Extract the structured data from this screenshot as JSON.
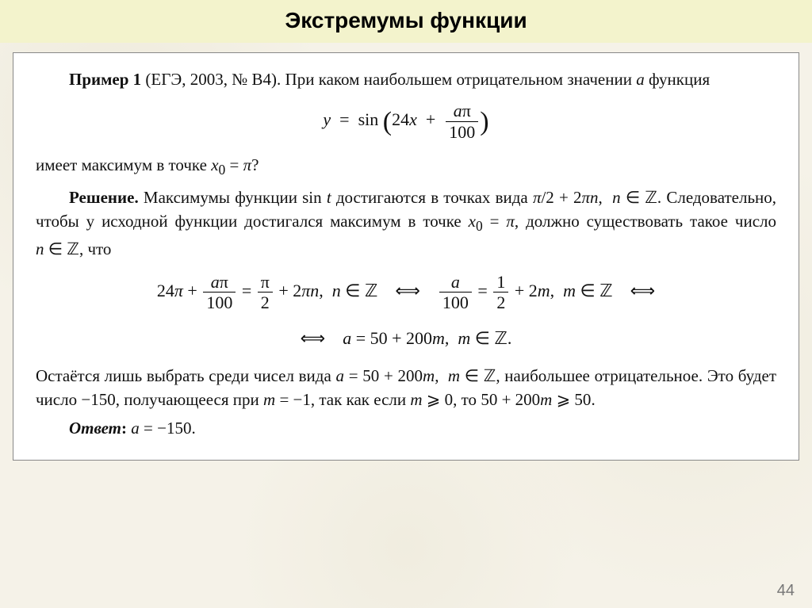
{
  "title": "Экстремумы функции",
  "page_number": "44",
  "colors": {
    "page_bg": "#f5f2e8",
    "title_bg": "#f3f3cc",
    "box_bg": "#ffffff",
    "box_border": "#888888",
    "text": "#111111",
    "pagenum": "#777777"
  },
  "example": {
    "label": "Пример 1",
    "source": "(ЕГЭ, 2003, № В4).",
    "prompt_before": "При каком наибольшем отрицательном значении ",
    "var_a": "a",
    "prompt_after": " функция",
    "formula": {
      "lhs": "y",
      "func": "sin",
      "inner_linear": "24x",
      "frac_num": "aπ",
      "frac_den": "100"
    },
    "condition_before": "имеет максимум в точке ",
    "x0_label": "x",
    "x0_sub": "0",
    "x0_value": "π",
    "condition_q": "?"
  },
  "solution": {
    "label": "Решение.",
    "p1_a": "Максимумы функции ",
    "p1_sint": "sin t",
    "p1_b": " достигаются в точках вида ",
    "p1_form": "π/2 + 2πn",
    "p1_nZ": "n ∈ ℤ",
    "p1_c": ". Следовательно, чтобы у исходной функции достигался максимум в точке ",
    "p1_x0": "x₀ = π",
    "p1_d": ", должно существовать такое число ",
    "p1_nZ2": "n ∈ ℤ",
    "p1_e": ", что",
    "eq_chain": {
      "t1_lhs_24pi": "24π",
      "t1_frac_num": "aπ",
      "t1_frac_den": "100",
      "t1_rhs_pi2_num": "π",
      "t1_rhs_pi2_den": "2",
      "t1_rhs_2pin": "2πn",
      "t1_nZ": "n ∈ ℤ",
      "iff": "⟺",
      "t2_lhs_num": "a",
      "t2_lhs_den": "100",
      "t2_rhs_num": "1",
      "t2_rhs_den": "2",
      "t2_rhs_2m": "2m",
      "t2_mZ": "m ∈ ℤ",
      "t3": "a = 50 + 200m,  m ∈ ℤ."
    },
    "p2_a": "Остаётся лишь выбрать среди чисел вида ",
    "p2_form": "a = 50 + 200m",
    "p2_mZ": "m ∈ ℤ",
    "p2_b": ", наибольшее отрицательное. Это будет число ",
    "p2_ans_num": "−150",
    "p2_c": ", получающееся при ",
    "p2_m": "m = −1",
    "p2_d": ", так как если ",
    "p2_mge0": "m ⩾ 0",
    "p2_e": ", то ",
    "p2_ineq": "50 + 200m ⩾ 50",
    "p2_f": ".",
    "answer_label": "Ответ",
    "answer_value": "a = −150."
  }
}
